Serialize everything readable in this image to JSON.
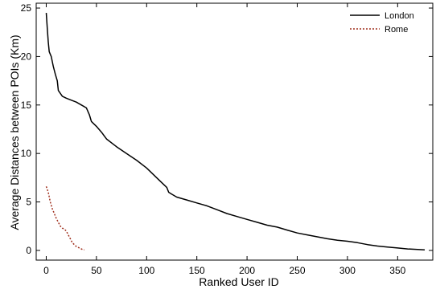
{
  "chart_data": {
    "type": "line",
    "xlabel": "Ranked User ID",
    "ylabel": "Average Distances between POIs (Km)",
    "xlim": [
      -10,
      385
    ],
    "ylim": [
      -1,
      25.5
    ],
    "x_ticks": [
      0,
      50,
      100,
      150,
      200,
      250,
      300,
      350
    ],
    "y_ticks": [
      0,
      5,
      10,
      15,
      20,
      25
    ],
    "grid": false,
    "legend": {
      "placement": "top-right",
      "entries": [
        {
          "name": "London",
          "style": "solid",
          "color": "#000000"
        },
        {
          "name": "Rome",
          "style": "dotted",
          "color": "#a0301e"
        }
      ]
    },
    "series": [
      {
        "name": "London",
        "color": "#000000",
        "style": "solid",
        "points": [
          [
            0,
            24.5
          ],
          [
            1,
            23.0
          ],
          [
            2,
            21.5
          ],
          [
            3,
            20.5
          ],
          [
            5,
            20.0
          ],
          [
            7,
            19.0
          ],
          [
            9,
            18.2
          ],
          [
            11,
            17.5
          ],
          [
            12,
            16.5
          ],
          [
            14,
            16.2
          ],
          [
            16,
            15.9
          ],
          [
            20,
            15.7
          ],
          [
            25,
            15.5
          ],
          [
            30,
            15.3
          ],
          [
            35,
            15.0
          ],
          [
            40,
            14.7
          ],
          [
            43,
            14.0
          ],
          [
            45,
            13.3
          ],
          [
            50,
            12.8
          ],
          [
            55,
            12.2
          ],
          [
            60,
            11.5
          ],
          [
            70,
            10.7
          ],
          [
            80,
            10.0
          ],
          [
            90,
            9.3
          ],
          [
            100,
            8.5
          ],
          [
            110,
            7.5
          ],
          [
            115,
            7.0
          ],
          [
            120,
            6.5
          ],
          [
            122,
            6.0
          ],
          [
            125,
            5.8
          ],
          [
            130,
            5.5
          ],
          [
            140,
            5.2
          ],
          [
            150,
            4.9
          ],
          [
            160,
            4.6
          ],
          [
            170,
            4.2
          ],
          [
            180,
            3.8
          ],
          [
            190,
            3.5
          ],
          [
            200,
            3.2
          ],
          [
            210,
            2.9
          ],
          [
            220,
            2.6
          ],
          [
            230,
            2.4
          ],
          [
            240,
            2.1
          ],
          [
            250,
            1.8
          ],
          [
            260,
            1.6
          ],
          [
            270,
            1.4
          ],
          [
            280,
            1.2
          ],
          [
            290,
            1.05
          ],
          [
            300,
            0.95
          ],
          [
            310,
            0.8
          ],
          [
            320,
            0.6
          ],
          [
            330,
            0.45
          ],
          [
            340,
            0.35
          ],
          [
            350,
            0.25
          ],
          [
            360,
            0.15
          ],
          [
            370,
            0.1
          ],
          [
            377,
            0.05
          ]
        ]
      },
      {
        "name": "Rome",
        "color": "#a0301e",
        "style": "dotted",
        "points": [
          [
            0,
            6.6
          ],
          [
            2,
            6.0
          ],
          [
            4,
            5.0
          ],
          [
            6,
            4.3
          ],
          [
            8,
            3.8
          ],
          [
            10,
            3.3
          ],
          [
            12,
            2.9
          ],
          [
            14,
            2.5
          ],
          [
            16,
            2.3
          ],
          [
            18,
            2.2
          ],
          [
            20,
            2.0
          ],
          [
            22,
            1.6
          ],
          [
            24,
            1.2
          ],
          [
            26,
            0.8
          ],
          [
            28,
            0.6
          ],
          [
            30,
            0.4
          ],
          [
            32,
            0.3
          ],
          [
            34,
            0.2
          ],
          [
            36,
            0.1
          ],
          [
            38,
            0.05
          ]
        ]
      }
    ]
  }
}
